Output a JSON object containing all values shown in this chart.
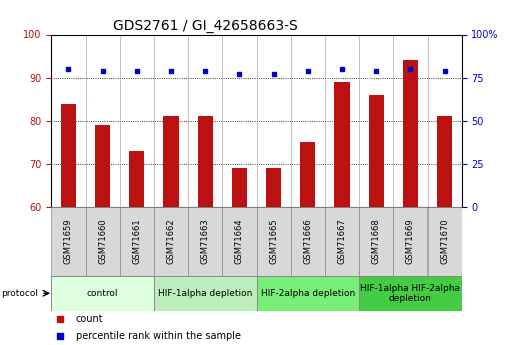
{
  "title": "GDS2761 / GI_42658663-S",
  "samples": [
    "GSM71659",
    "GSM71660",
    "GSM71661",
    "GSM71662",
    "GSM71663",
    "GSM71664",
    "GSM71665",
    "GSM71666",
    "GSM71667",
    "GSM71668",
    "GSM71669",
    "GSM71670"
  ],
  "bar_values": [
    84,
    79,
    73,
    81,
    81,
    69,
    69,
    75,
    89,
    86,
    94,
    81
  ],
  "dot_values_pct": [
    80,
    79,
    79,
    79,
    79,
    77,
    77,
    79,
    80,
    79,
    80,
    79
  ],
  "ylim_left": [
    60,
    100
  ],
  "ylim_right": [
    0,
    100
  ],
  "yticks_left": [
    60,
    70,
    80,
    90,
    100
  ],
  "yticks_right": [
    0,
    25,
    50,
    75,
    100
  ],
  "ytick_labels_right": [
    "0",
    "25",
    "50",
    "75",
    "100%"
  ],
  "bar_color": "#bb1111",
  "dot_color": "#0000cc",
  "grid_color": "#000000",
  "groups": [
    {
      "label": "control",
      "start": 0,
      "end": 3,
      "color": "#ddffdd"
    },
    {
      "label": "HIF-1alpha depletion",
      "start": 3,
      "end": 6,
      "color": "#bbeebb"
    },
    {
      "label": "HIF-2alpha depletion",
      "start": 6,
      "end": 9,
      "color": "#77ee77"
    },
    {
      "label": "HIF-1alpha HIF-2alpha\ndepletion",
      "start": 9,
      "end": 12,
      "color": "#44cc44"
    }
  ],
  "protocol_label": "protocol",
  "legend_count": "count",
  "legend_percentile": "percentile rank within the sample",
  "title_fontsize": 10,
  "tick_fontsize": 7,
  "sample_fontsize": 6,
  "group_fontsize": 6.5
}
